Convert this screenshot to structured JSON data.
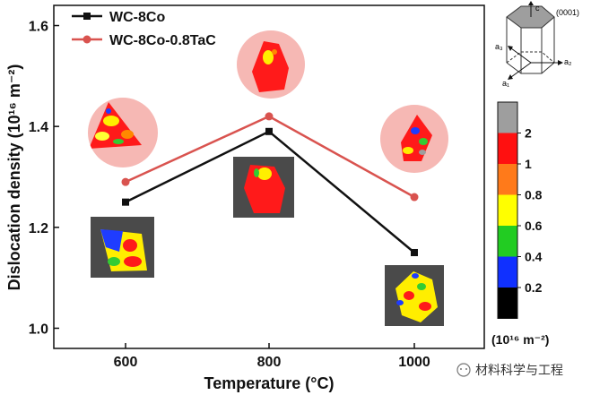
{
  "chart_data": {
    "type": "line",
    "x": [
      600,
      800,
      1000
    ],
    "categories": [
      "600",
      "800",
      "1000"
    ],
    "series": [
      {
        "name": "WC-8Co",
        "values": [
          1.25,
          1.39,
          1.15
        ],
        "color": "#111111",
        "marker": "square"
      },
      {
        "name": "WC-8Co-0.8TaC",
        "values": [
          1.29,
          1.42,
          1.26
        ],
        "color": "#d9534f",
        "marker": "circle"
      }
    ],
    "xlabel": "Temperature (°C)",
    "ylabel": "Dislocation density (10¹⁶ m⁻²)",
    "ylim": [
      0.96,
      1.64
    ],
    "yticks": [
      "1.0",
      "1.2",
      "1.4",
      "1.6"
    ],
    "grid": false,
    "legend_position": "top-left"
  },
  "colorbar": {
    "ticks": [
      "2",
      "1",
      "0.8",
      "0.6",
      "0.4",
      "0.2"
    ],
    "unit": "(10¹⁶ m⁻²)",
    "colors": [
      "#9e9e9e",
      "#ff1010",
      "#ff7a1a",
      "#ffff00",
      "#22cc22",
      "#1030ff",
      "#000000"
    ]
  },
  "crystal_diagram": {
    "c_label": "c",
    "plane_label": "(0001)",
    "a1_label": "a₁",
    "a2_label": "a₂",
    "a3_label": "a₃"
  },
  "watermark": "材料科学与工程",
  "colors": {
    "tac_halo": "#f6b8b4",
    "inset_bg": "#4a4a4a"
  }
}
